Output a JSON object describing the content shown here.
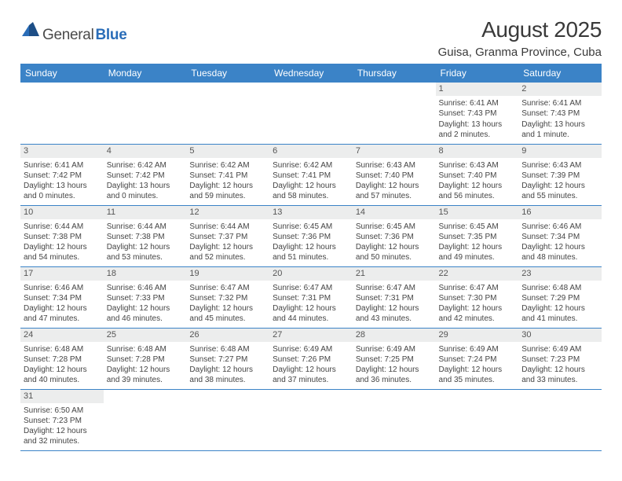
{
  "logo": {
    "text1": "General",
    "text2": "Blue"
  },
  "title": "August 2025",
  "location": "Guisa, Granma Province, Cuba",
  "colors": {
    "header_bg": "#3b83c7",
    "header_text": "#ffffff",
    "daynum_bg": "#eceded",
    "border": "#3b83c7",
    "logo_blue": "#2a6db8",
    "body_text": "#444444"
  },
  "weekdays": [
    "Sunday",
    "Monday",
    "Tuesday",
    "Wednesday",
    "Thursday",
    "Friday",
    "Saturday"
  ],
  "weeks": [
    [
      null,
      null,
      null,
      null,
      null,
      {
        "d": "1",
        "sr": "Sunrise: 6:41 AM",
        "ss": "Sunset: 7:43 PM",
        "dl1": "Daylight: 13 hours",
        "dl2": "and 2 minutes."
      },
      {
        "d": "2",
        "sr": "Sunrise: 6:41 AM",
        "ss": "Sunset: 7:43 PM",
        "dl1": "Daylight: 13 hours",
        "dl2": "and 1 minute."
      }
    ],
    [
      {
        "d": "3",
        "sr": "Sunrise: 6:41 AM",
        "ss": "Sunset: 7:42 PM",
        "dl1": "Daylight: 13 hours",
        "dl2": "and 0 minutes."
      },
      {
        "d": "4",
        "sr": "Sunrise: 6:42 AM",
        "ss": "Sunset: 7:42 PM",
        "dl1": "Daylight: 13 hours",
        "dl2": "and 0 minutes."
      },
      {
        "d": "5",
        "sr": "Sunrise: 6:42 AM",
        "ss": "Sunset: 7:41 PM",
        "dl1": "Daylight: 12 hours",
        "dl2": "and 59 minutes."
      },
      {
        "d": "6",
        "sr": "Sunrise: 6:42 AM",
        "ss": "Sunset: 7:41 PM",
        "dl1": "Daylight: 12 hours",
        "dl2": "and 58 minutes."
      },
      {
        "d": "7",
        "sr": "Sunrise: 6:43 AM",
        "ss": "Sunset: 7:40 PM",
        "dl1": "Daylight: 12 hours",
        "dl2": "and 57 minutes."
      },
      {
        "d": "8",
        "sr": "Sunrise: 6:43 AM",
        "ss": "Sunset: 7:40 PM",
        "dl1": "Daylight: 12 hours",
        "dl2": "and 56 minutes."
      },
      {
        "d": "9",
        "sr": "Sunrise: 6:43 AM",
        "ss": "Sunset: 7:39 PM",
        "dl1": "Daylight: 12 hours",
        "dl2": "and 55 minutes."
      }
    ],
    [
      {
        "d": "10",
        "sr": "Sunrise: 6:44 AM",
        "ss": "Sunset: 7:38 PM",
        "dl1": "Daylight: 12 hours",
        "dl2": "and 54 minutes."
      },
      {
        "d": "11",
        "sr": "Sunrise: 6:44 AM",
        "ss": "Sunset: 7:38 PM",
        "dl1": "Daylight: 12 hours",
        "dl2": "and 53 minutes."
      },
      {
        "d": "12",
        "sr": "Sunrise: 6:44 AM",
        "ss": "Sunset: 7:37 PM",
        "dl1": "Daylight: 12 hours",
        "dl2": "and 52 minutes."
      },
      {
        "d": "13",
        "sr": "Sunrise: 6:45 AM",
        "ss": "Sunset: 7:36 PM",
        "dl1": "Daylight: 12 hours",
        "dl2": "and 51 minutes."
      },
      {
        "d": "14",
        "sr": "Sunrise: 6:45 AM",
        "ss": "Sunset: 7:36 PM",
        "dl1": "Daylight: 12 hours",
        "dl2": "and 50 minutes."
      },
      {
        "d": "15",
        "sr": "Sunrise: 6:45 AM",
        "ss": "Sunset: 7:35 PM",
        "dl1": "Daylight: 12 hours",
        "dl2": "and 49 minutes."
      },
      {
        "d": "16",
        "sr": "Sunrise: 6:46 AM",
        "ss": "Sunset: 7:34 PM",
        "dl1": "Daylight: 12 hours",
        "dl2": "and 48 minutes."
      }
    ],
    [
      {
        "d": "17",
        "sr": "Sunrise: 6:46 AM",
        "ss": "Sunset: 7:34 PM",
        "dl1": "Daylight: 12 hours",
        "dl2": "and 47 minutes."
      },
      {
        "d": "18",
        "sr": "Sunrise: 6:46 AM",
        "ss": "Sunset: 7:33 PM",
        "dl1": "Daylight: 12 hours",
        "dl2": "and 46 minutes."
      },
      {
        "d": "19",
        "sr": "Sunrise: 6:47 AM",
        "ss": "Sunset: 7:32 PM",
        "dl1": "Daylight: 12 hours",
        "dl2": "and 45 minutes."
      },
      {
        "d": "20",
        "sr": "Sunrise: 6:47 AM",
        "ss": "Sunset: 7:31 PM",
        "dl1": "Daylight: 12 hours",
        "dl2": "and 44 minutes."
      },
      {
        "d": "21",
        "sr": "Sunrise: 6:47 AM",
        "ss": "Sunset: 7:31 PM",
        "dl1": "Daylight: 12 hours",
        "dl2": "and 43 minutes."
      },
      {
        "d": "22",
        "sr": "Sunrise: 6:47 AM",
        "ss": "Sunset: 7:30 PM",
        "dl1": "Daylight: 12 hours",
        "dl2": "and 42 minutes."
      },
      {
        "d": "23",
        "sr": "Sunrise: 6:48 AM",
        "ss": "Sunset: 7:29 PM",
        "dl1": "Daylight: 12 hours",
        "dl2": "and 41 minutes."
      }
    ],
    [
      {
        "d": "24",
        "sr": "Sunrise: 6:48 AM",
        "ss": "Sunset: 7:28 PM",
        "dl1": "Daylight: 12 hours",
        "dl2": "and 40 minutes."
      },
      {
        "d": "25",
        "sr": "Sunrise: 6:48 AM",
        "ss": "Sunset: 7:28 PM",
        "dl1": "Daylight: 12 hours",
        "dl2": "and 39 minutes."
      },
      {
        "d": "26",
        "sr": "Sunrise: 6:48 AM",
        "ss": "Sunset: 7:27 PM",
        "dl1": "Daylight: 12 hours",
        "dl2": "and 38 minutes."
      },
      {
        "d": "27",
        "sr": "Sunrise: 6:49 AM",
        "ss": "Sunset: 7:26 PM",
        "dl1": "Daylight: 12 hours",
        "dl2": "and 37 minutes."
      },
      {
        "d": "28",
        "sr": "Sunrise: 6:49 AM",
        "ss": "Sunset: 7:25 PM",
        "dl1": "Daylight: 12 hours",
        "dl2": "and 36 minutes."
      },
      {
        "d": "29",
        "sr": "Sunrise: 6:49 AM",
        "ss": "Sunset: 7:24 PM",
        "dl1": "Daylight: 12 hours",
        "dl2": "and 35 minutes."
      },
      {
        "d": "30",
        "sr": "Sunrise: 6:49 AM",
        "ss": "Sunset: 7:23 PM",
        "dl1": "Daylight: 12 hours",
        "dl2": "and 33 minutes."
      }
    ],
    [
      {
        "d": "31",
        "sr": "Sunrise: 6:50 AM",
        "ss": "Sunset: 7:23 PM",
        "dl1": "Daylight: 12 hours",
        "dl2": "and 32 minutes."
      },
      null,
      null,
      null,
      null,
      null,
      null
    ]
  ]
}
